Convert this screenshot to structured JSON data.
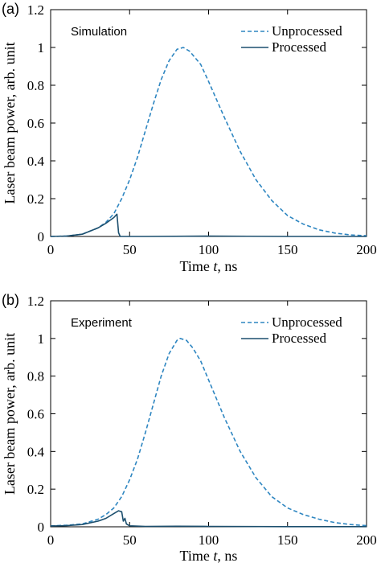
{
  "chart_data": [
    {
      "type": "line",
      "panel_label": "(a)",
      "annotation": "Simulation",
      "xlabel": "Time t, ns",
      "ylabel": "Laser beam power, arb. unit",
      "xlim": [
        0,
        200
      ],
      "ylim": [
        0,
        1.2
      ],
      "xticks": [
        0,
        50,
        100,
        150,
        200
      ],
      "yticks": [
        0,
        0.2,
        0.4,
        0.6,
        0.8,
        1,
        1.2
      ],
      "legend": "top-right",
      "series": [
        {
          "name": "Unprocessed",
          "style": "dashed",
          "color": "#2e86c1",
          "points": [
            [
              0,
              0
            ],
            [
              10,
              0.002
            ],
            [
              20,
              0.012
            ],
            [
              30,
              0.045
            ],
            [
              35,
              0.075
            ],
            [
              40,
              0.12
            ],
            [
              45,
              0.2
            ],
            [
              50,
              0.3
            ],
            [
              55,
              0.42
            ],
            [
              60,
              0.56
            ],
            [
              65,
              0.7
            ],
            [
              70,
              0.83
            ],
            [
              75,
              0.93
            ],
            [
              80,
              0.99
            ],
            [
              84,
              1.0
            ],
            [
              88,
              0.98
            ],
            [
              95,
              0.91
            ],
            [
              100,
              0.82
            ],
            [
              110,
              0.63
            ],
            [
              120,
              0.45
            ],
            [
              130,
              0.3
            ],
            [
              140,
              0.19
            ],
            [
              150,
              0.11
            ],
            [
              160,
              0.065
            ],
            [
              170,
              0.035
            ],
            [
              180,
              0.018
            ],
            [
              190,
              0.008
            ],
            [
              200,
              0.004
            ]
          ]
        },
        {
          "name": "Processed",
          "style": "solid",
          "color": "#1c4f6e",
          "points": [
            [
              0,
              0
            ],
            [
              10,
              0.002
            ],
            [
              20,
              0.012
            ],
            [
              30,
              0.045
            ],
            [
              35,
              0.07
            ],
            [
              40,
              0.1
            ],
            [
              42,
              0.118
            ],
            [
              43,
              0.02
            ],
            [
              44,
              0.0
            ],
            [
              60,
              0.0
            ],
            [
              100,
              0.002
            ],
            [
              150,
              0.0
            ],
            [
              200,
              0.0
            ]
          ]
        }
      ]
    },
    {
      "type": "line",
      "panel_label": "(b)",
      "annotation": "Experiment",
      "xlabel": "Time t, ns",
      "ylabel": "Laser beam power, arb. unit",
      "xlim": [
        0,
        200
      ],
      "ylim": [
        0,
        1.2
      ],
      "xticks": [
        0,
        50,
        100,
        150,
        200
      ],
      "yticks": [
        0,
        0.2,
        0.4,
        0.6,
        0.8,
        1,
        1.2
      ],
      "legend": "top-right",
      "series": [
        {
          "name": "Unprocessed",
          "style": "dashed",
          "color": "#2e86c1",
          "points": [
            [
              0,
              0.005
            ],
            [
              10,
              0.008
            ],
            [
              20,
              0.015
            ],
            [
              30,
              0.04
            ],
            [
              35,
              0.065
            ],
            [
              40,
              0.1
            ],
            [
              45,
              0.16
            ],
            [
              50,
              0.25
            ],
            [
              55,
              0.36
            ],
            [
              60,
              0.5
            ],
            [
              65,
              0.65
            ],
            [
              70,
              0.8
            ],
            [
              75,
              0.92
            ],
            [
              80,
              0.99
            ],
            [
              82,
              1.0
            ],
            [
              86,
              0.99
            ],
            [
              90,
              0.95
            ],
            [
              95,
              0.88
            ],
            [
              100,
              0.78
            ],
            [
              110,
              0.58
            ],
            [
              120,
              0.4
            ],
            [
              130,
              0.26
            ],
            [
              140,
              0.16
            ],
            [
              150,
              0.1
            ],
            [
              160,
              0.065
            ],
            [
              170,
              0.04
            ],
            [
              180,
              0.022
            ],
            [
              190,
              0.012
            ],
            [
              200,
              0.006
            ]
          ]
        },
        {
          "name": "Processed",
          "style": "solid",
          "color": "#1c4f6e",
          "points": [
            [
              0,
              0.004
            ],
            [
              10,
              0.006
            ],
            [
              20,
              0.012
            ],
            [
              30,
              0.03
            ],
            [
              35,
              0.045
            ],
            [
              40,
              0.07
            ],
            [
              43,
              0.085
            ],
            [
              45,
              0.08
            ],
            [
              46,
              0.03
            ],
            [
              47,
              0.045
            ],
            [
              48,
              0.015
            ],
            [
              50,
              0.005
            ],
            [
              60,
              0.002
            ],
            [
              80,
              0.003
            ],
            [
              100,
              0.002
            ],
            [
              150,
              0.001
            ],
            [
              200,
              0.001
            ]
          ]
        }
      ]
    }
  ]
}
